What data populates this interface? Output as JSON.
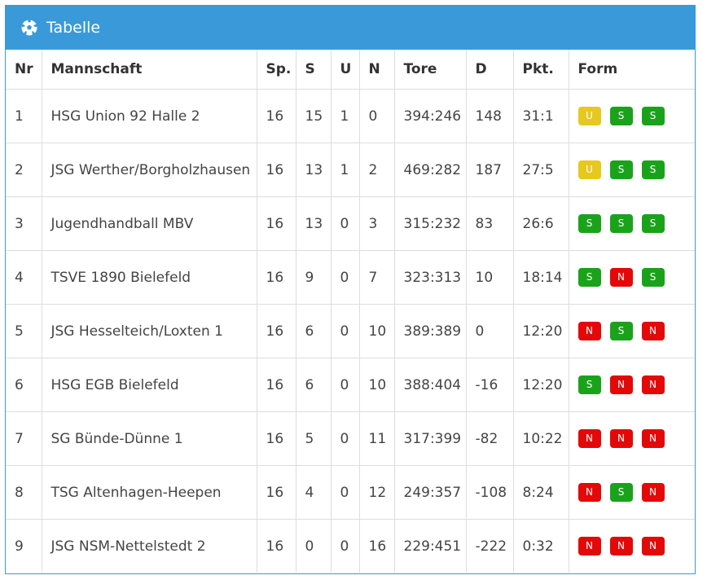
{
  "panel": {
    "title": "Tabelle",
    "icon": "soccer-ball-icon"
  },
  "table": {
    "columns": [
      "Nr",
      "Mannschaft",
      "Sp.",
      "S",
      "U",
      "N",
      "Tore",
      "D",
      "Pkt.",
      "Form"
    ],
    "rows": [
      {
        "nr": "1",
        "team": "HSG Union 92 Halle 2",
        "sp": "16",
        "s": "15",
        "u": "1",
        "n": "0",
        "tore": "394:246",
        "d": "148",
        "pkt": "31:1",
        "form": [
          "U",
          "S",
          "S"
        ]
      },
      {
        "nr": "2",
        "team": "JSG Werther/Borgholzhausen",
        "sp": "16",
        "s": "13",
        "u": "1",
        "n": "2",
        "tore": "469:282",
        "d": "187",
        "pkt": "27:5",
        "form": [
          "U",
          "S",
          "S"
        ]
      },
      {
        "nr": "3",
        "team": "Jugendhandball MBV",
        "sp": "16",
        "s": "13",
        "u": "0",
        "n": "3",
        "tore": "315:232",
        "d": "83",
        "pkt": "26:6",
        "form": [
          "S",
          "S",
          "S"
        ]
      },
      {
        "nr": "4",
        "team": "TSVE 1890 Bielefeld",
        "sp": "16",
        "s": "9",
        "u": "0",
        "n": "7",
        "tore": "323:313",
        "d": "10",
        "pkt": "18:14",
        "form": [
          "S",
          "N",
          "S"
        ]
      },
      {
        "nr": "5",
        "team": "JSG Hesselteich/Loxten 1",
        "sp": "16",
        "s": "6",
        "u": "0",
        "n": "10",
        "tore": "389:389",
        "d": "0",
        "pkt": "12:20",
        "form": [
          "N",
          "S",
          "N"
        ]
      },
      {
        "nr": "6",
        "team": "HSG EGB Bielefeld",
        "sp": "16",
        "s": "6",
        "u": "0",
        "n": "10",
        "tore": "388:404",
        "d": "-16",
        "pkt": "12:20",
        "form": [
          "S",
          "N",
          "N"
        ]
      },
      {
        "nr": "7",
        "team": "SG Bünde-Dünne 1",
        "sp": "16",
        "s": "5",
        "u": "0",
        "n": "11",
        "tore": "317:399",
        "d": "-82",
        "pkt": "10:22",
        "form": [
          "N",
          "N",
          "N"
        ]
      },
      {
        "nr": "8",
        "team": "TSG Altenhagen-Heepen",
        "sp": "16",
        "s": "4",
        "u": "0",
        "n": "12",
        "tore": "249:357",
        "d": "-108",
        "pkt": "8:24",
        "form": [
          "N",
          "S",
          "N"
        ]
      },
      {
        "nr": "9",
        "team": "JSG NSM-Nettelstedt 2",
        "sp": "16",
        "s": "0",
        "u": "0",
        "n": "16",
        "tore": "229:451",
        "d": "-222",
        "pkt": "0:32",
        "form": [
          "N",
          "N",
          "N"
        ]
      }
    ]
  },
  "colors": {
    "header_bg": "#3a9ad9",
    "win": "#1aa31a",
    "loss": "#e30909",
    "draw": "#e6c81e"
  }
}
